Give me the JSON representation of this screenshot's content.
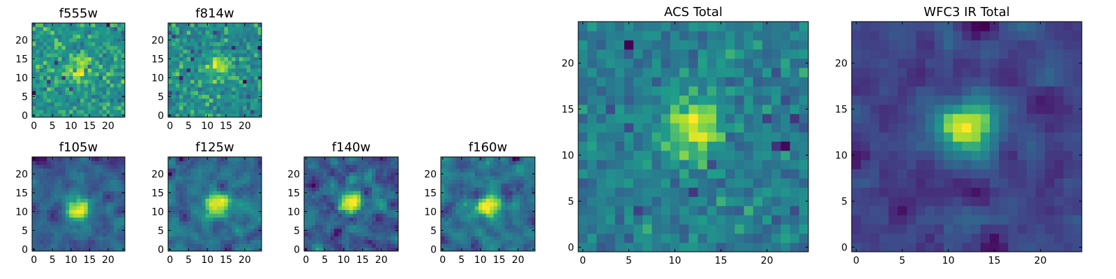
{
  "figure": {
    "background": "#ffffff"
  },
  "chart_data": [
    {
      "id": "f555w",
      "type": "heatmap",
      "title": "f555w",
      "size": 25,
      "seed": 11,
      "peak": [
        12,
        12
      ],
      "peak_strength": 0.9,
      "smooth": 0,
      "xticks": [
        0,
        5,
        10,
        15,
        20
      ],
      "yticks": [
        0,
        5,
        10,
        15,
        20
      ],
      "colormap": "viridis"
    },
    {
      "id": "f814w",
      "type": "heatmap",
      "title": "f814w",
      "size": 25,
      "seed": 23,
      "peak": [
        13,
        13
      ],
      "peak_strength": 0.7,
      "smooth": 0,
      "xticks": [
        0,
        5,
        10,
        15,
        20
      ],
      "yticks": [
        0,
        5,
        10,
        15,
        20
      ],
      "colormap": "viridis"
    },
    {
      "id": "f105w",
      "type": "heatmap",
      "title": "f105w",
      "size": 25,
      "seed": 37,
      "peak": [
        12,
        11
      ],
      "peak_strength": 0.9,
      "smooth": 1,
      "xticks": [
        0,
        5,
        10,
        15,
        20
      ],
      "yticks": [
        0,
        5,
        10,
        15,
        20
      ],
      "colormap": "viridis"
    },
    {
      "id": "f125w",
      "type": "heatmap",
      "title": "f125w",
      "size": 25,
      "seed": 41,
      "peak": [
        13,
        12
      ],
      "peak_strength": 0.7,
      "smooth": 1,
      "xticks": [
        0,
        5,
        10,
        15,
        20
      ],
      "yticks": [
        0,
        5,
        10,
        15,
        20
      ],
      "colormap": "viridis"
    },
    {
      "id": "f140w",
      "type": "heatmap",
      "title": "f140w",
      "size": 25,
      "seed": 53,
      "peak": [
        12,
        12
      ],
      "peak_strength": 0.6,
      "smooth": 1,
      "xticks": [
        0,
        5,
        10,
        15,
        20
      ],
      "yticks": [
        0,
        5,
        10,
        15,
        20
      ],
      "colormap": "viridis"
    },
    {
      "id": "f160w",
      "type": "heatmap",
      "title": "f160w",
      "size": 25,
      "seed": 67,
      "peak": [
        12,
        11
      ],
      "peak_strength": 0.6,
      "smooth": 1,
      "xticks": [
        0,
        5,
        10,
        15,
        20
      ],
      "yticks": [
        0,
        5,
        10,
        15,
        20
      ],
      "colormap": "viridis"
    },
    {
      "id": "acs-total",
      "type": "heatmap",
      "title": "ACS Total",
      "size": 25,
      "seed": 79,
      "peak": [
        12,
        13
      ],
      "peak_strength": 1.2,
      "smooth": 0,
      "xticks": [
        0,
        5,
        10,
        15,
        20
      ],
      "yticks": [
        0,
        5,
        10,
        15,
        20
      ],
      "colormap": "viridis"
    },
    {
      "id": "wfc3-ir-total",
      "type": "heatmap",
      "title": "WFC3 IR Total",
      "size": 25,
      "seed": 97,
      "peak": [
        12,
        13
      ],
      "peak_strength": 1.2,
      "smooth": 1,
      "xticks": [
        0,
        5,
        10,
        15,
        20
      ],
      "yticks": [
        0,
        5,
        10,
        15,
        20
      ],
      "colormap": "viridis"
    }
  ]
}
